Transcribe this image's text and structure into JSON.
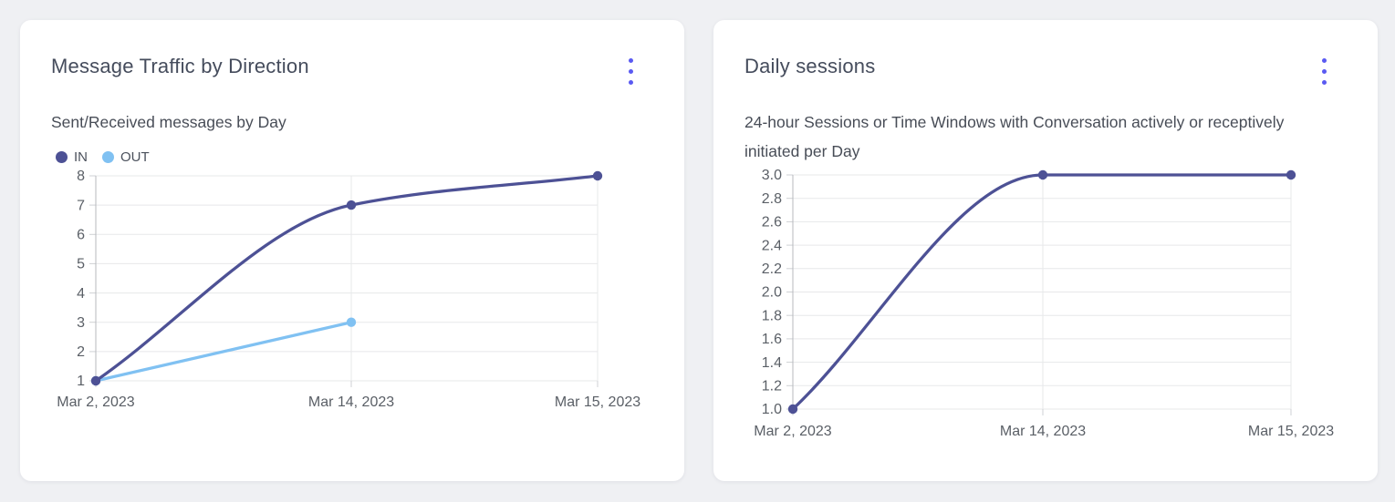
{
  "colors": {
    "accent_menu": "#5a5af2",
    "series_dark_indigo": "#4d5195",
    "series_light_blue": "#80c1f2",
    "card_background": "#ffffff",
    "page_background": "#eff0f3"
  },
  "cards": [
    {
      "title": "Message Traffic by Direction",
      "subtitle": "Sent/Received messages by Day",
      "menu_icon": "kebab-menu-icon",
      "has_legend": true
    },
    {
      "title": "Daily sessions",
      "subtitle": "24-hour Sessions or Time Windows with Conversation actively or receptively initiated per Day",
      "menu_icon": "kebab-menu-icon",
      "has_legend": false
    }
  ],
  "chart_data": [
    {
      "type": "line",
      "title": "Message Traffic by Direction",
      "subtitle": "Sent/Received messages by Day",
      "categories": [
        "Mar 2, 2023",
        "Mar 14, 2023",
        "Mar 15, 2023"
      ],
      "series": [
        {
          "name": "IN",
          "color": "#4d5195",
          "values": [
            1,
            7,
            8
          ]
        },
        {
          "name": "OUT",
          "color": "#80c1f2",
          "values": [
            1,
            3,
            null
          ]
        }
      ],
      "ylim": [
        1,
        8
      ],
      "yticks": [
        "8",
        "7",
        "6",
        "5",
        "4",
        "3",
        "2",
        "1"
      ],
      "grid": true,
      "legend_position": "top-left",
      "curve": "monotone"
    },
    {
      "type": "line",
      "title": "Daily sessions",
      "subtitle": "24-hour Sessions or Time Windows with Conversation actively or receptively initiated per Day",
      "categories": [
        "Mar 2, 2023",
        "Mar 14, 2023",
        "Mar 15, 2023"
      ],
      "series": [
        {
          "name": "Daily sessions",
          "color": "#4d5195",
          "values": [
            1.0,
            3.0,
            3.0
          ]
        }
      ],
      "ylim": [
        1.0,
        3.0
      ],
      "yticks": [
        "3.0",
        "2.8",
        "2.6",
        "2.4",
        "2.2",
        "2.0",
        "1.8",
        "1.6",
        "1.4",
        "1.2",
        "1.0"
      ],
      "grid": true,
      "legend_position": "none",
      "curve": "monotone"
    }
  ]
}
